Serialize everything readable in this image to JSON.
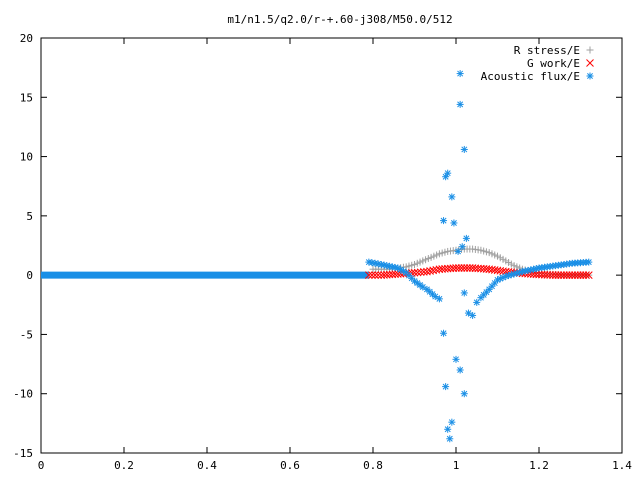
{
  "chart_data": {
    "type": "scatter",
    "title": "m1/n1.5/q2.0/r-+.60-j308/M50.0/512",
    "xlabel": "",
    "ylabel": "",
    "xlim": [
      0,
      1.4
    ],
    "ylim": [
      -15,
      20
    ],
    "xticks": [
      0,
      0.2,
      0.4,
      0.6,
      0.8,
      1,
      1.2,
      1.4
    ],
    "xtick_labels": [
      "0",
      "0.2",
      "0.4",
      "0.6",
      "0.8",
      "1",
      "1.2",
      "1.4"
    ],
    "yticks": [
      -15,
      -10,
      -5,
      0,
      5,
      10,
      15,
      20
    ],
    "ytick_labels": [
      "-15",
      "-10",
      "-5",
      "0",
      "5",
      "10",
      "15",
      "20"
    ],
    "grid": false,
    "legend_position": "top-right",
    "series": [
      {
        "name": "R stress/E",
        "marker": "plus",
        "color": "#a0a0a0",
        "points": [
          [
            0.8,
            0.5
          ],
          [
            0.84,
            0.5
          ],
          [
            0.88,
            0.7
          ],
          [
            0.9,
            0.9
          ],
          [
            0.92,
            1.2
          ],
          [
            0.94,
            1.5
          ],
          [
            0.96,
            1.8
          ],
          [
            0.98,
            2.0
          ],
          [
            1.0,
            2.1
          ],
          [
            1.02,
            2.2
          ],
          [
            1.04,
            2.2
          ],
          [
            1.06,
            2.1
          ],
          [
            1.08,
            1.9
          ],
          [
            1.1,
            1.6
          ],
          [
            1.12,
            1.2
          ],
          [
            1.14,
            0.8
          ],
          [
            1.16,
            0.5
          ],
          [
            1.18,
            0.3
          ],
          [
            1.2,
            0.2
          ],
          [
            1.22,
            0.1
          ],
          [
            1.26,
            0.0
          ],
          [
            1.3,
            0.0
          ],
          [
            1.32,
            0.0
          ]
        ]
      },
      {
        "name": "G work/E",
        "marker": "cross",
        "color": "#ff0000",
        "points": [
          [
            0.79,
            0.0
          ],
          [
            0.82,
            0.0
          ],
          [
            0.86,
            0.1
          ],
          [
            0.9,
            0.2
          ],
          [
            0.93,
            0.3
          ],
          [
            0.96,
            0.5
          ],
          [
            1.0,
            0.6
          ],
          [
            1.04,
            0.6
          ],
          [
            1.08,
            0.5
          ],
          [
            1.12,
            0.3
          ],
          [
            1.16,
            0.15
          ],
          [
            1.2,
            0.05
          ],
          [
            1.24,
            0.0
          ],
          [
            1.28,
            0.0
          ],
          [
            1.32,
            0.0
          ]
        ]
      },
      {
        "name": "Acoustic flux/E",
        "marker": "star",
        "color": "#1a8fe6",
        "points": [
          [
            0.79,
            1.1
          ],
          [
            0.82,
            0.9
          ],
          [
            0.86,
            0.6
          ],
          [
            0.88,
            0.2
          ],
          [
            0.9,
            -0.5
          ],
          [
            0.92,
            -1.0
          ],
          [
            0.93,
            -1.2
          ],
          [
            0.95,
            -1.8
          ],
          [
            0.96,
            -2.0
          ],
          [
            0.97,
            4.6
          ],
          [
            0.97,
            -4.9
          ],
          [
            0.975,
            -9.4
          ],
          [
            0.975,
            8.3
          ],
          [
            0.98,
            8.6
          ],
          [
            0.98,
            -13.0
          ],
          [
            0.985,
            -13.8
          ],
          [
            0.99,
            6.6
          ],
          [
            0.99,
            -12.4
          ],
          [
            0.995,
            4.4
          ],
          [
            1.0,
            -7.1
          ],
          [
            1.005,
            2.0
          ],
          [
            1.01,
            -8.0
          ],
          [
            1.01,
            14.4
          ],
          [
            1.01,
            17.0
          ],
          [
            1.015,
            2.4
          ],
          [
            1.02,
            10.6
          ],
          [
            1.02,
            -10.0
          ],
          [
            1.02,
            -1.5
          ],
          [
            1.025,
            3.1
          ],
          [
            1.03,
            -3.2
          ],
          [
            1.04,
            -3.4
          ],
          [
            1.05,
            -2.3
          ],
          [
            1.06,
            -1.9
          ],
          [
            1.08,
            -1.2
          ],
          [
            1.1,
            -0.4
          ],
          [
            1.12,
            -0.1
          ],
          [
            1.14,
            0.1
          ],
          [
            1.16,
            0.3
          ],
          [
            1.2,
            0.6
          ],
          [
            1.24,
            0.8
          ],
          [
            1.28,
            1.0
          ],
          [
            1.32,
            1.1
          ]
        ]
      }
    ]
  }
}
